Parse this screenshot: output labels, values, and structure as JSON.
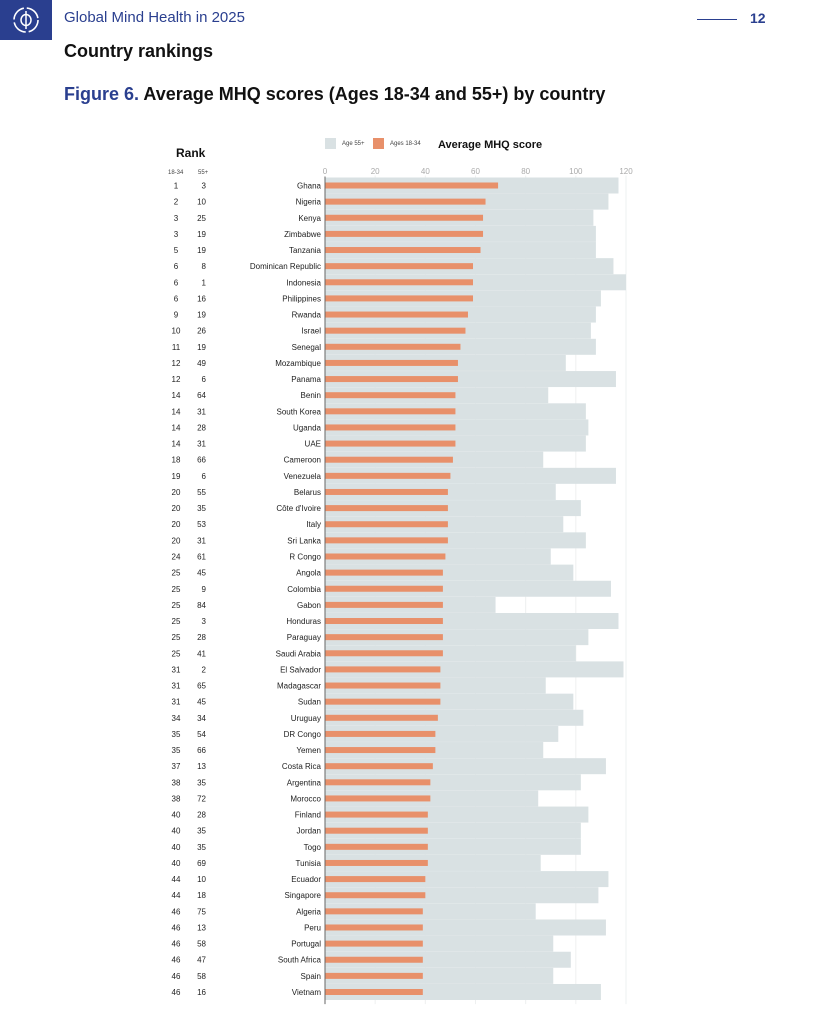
{
  "header": {
    "logo_icon": "phi-logo-icon",
    "doc_title": "Global Mind Health in 2025",
    "page_number": "12"
  },
  "section_title": "Country rankings",
  "figure": {
    "label": "Figure 6.",
    "title": "Average MHQ scores (Ages 18-34 and 55+) by country"
  },
  "rank_table": {
    "heading": "Rank",
    "col1": "18-34",
    "col2": "55+"
  },
  "colors": {
    "brand": "#2a3f8f",
    "age_18_34": "#e8906a",
    "age_55_plus": "#d9e1e3"
  },
  "chart_data": {
    "type": "bar",
    "orientation": "horizontal",
    "title": "Average MHQ score",
    "xlim": [
      0,
      120
    ],
    "xticks": [
      0,
      20,
      40,
      60,
      80,
      100,
      120
    ],
    "legend": [
      "Age 55+",
      "Ages 18-34"
    ],
    "legend_position": "top",
    "grid": true,
    "categories": [
      "Ghana",
      "Nigeria",
      "Kenya",
      "Zimbabwe",
      "Tanzania",
      "Dominican Republic",
      "Indonesia",
      "Philippines",
      "Rwanda",
      "Israel",
      "Senegal",
      "Mozambique",
      "Panama",
      "Benin",
      "South Korea",
      "Uganda",
      "UAE",
      "Cameroon",
      "Venezuela",
      "Belarus",
      "Côte d'Ivoire",
      "Italy",
      "Sri Lanka",
      "R Congo",
      "Angola",
      "Colombia",
      "Gabon",
      "Honduras",
      "Paraguay",
      "Saudi Arabia",
      "El Salvador",
      "Madagascar",
      "Sudan",
      "Uruguay",
      "DR Congo",
      "Yemen",
      "Costa Rica",
      "Argentina",
      "Morocco",
      "Finland",
      "Jordan",
      "Togo",
      "Tunisia",
      "Ecuador",
      "Singapore",
      "Algeria",
      "Peru",
      "Portugal",
      "South Africa",
      "Spain",
      "Vietnam"
    ],
    "series": [
      {
        "name": "Age 55+",
        "values": [
          117,
          113,
          107,
          108,
          108,
          115,
          120,
          110,
          108,
          106,
          108,
          96,
          116,
          89,
          104,
          105,
          104,
          87,
          116,
          92,
          102,
          95,
          104,
          90,
          99,
          114,
          68,
          117,
          105,
          100,
          119,
          88,
          99,
          103,
          93,
          87,
          112,
          102,
          85,
          105,
          102,
          102,
          86,
          113,
          109,
          84,
          112,
          91,
          98,
          91,
          110
        ]
      },
      {
        "name": "Ages 18-34",
        "values": [
          69,
          64,
          63,
          63,
          62,
          59,
          59,
          59,
          57,
          56,
          54,
          53,
          53,
          52,
          52,
          52,
          52,
          51,
          50,
          49,
          49,
          49,
          49,
          48,
          47,
          47,
          47,
          47,
          47,
          47,
          46,
          46,
          46,
          45,
          44,
          44,
          43,
          42,
          42,
          41,
          41,
          41,
          41,
          40,
          40,
          39,
          39,
          39,
          39,
          39,
          39
        ]
      }
    ],
    "rank_18_34": [
      1,
      2,
      3,
      3,
      5,
      6,
      6,
      6,
      9,
      10,
      11,
      12,
      12,
      14,
      14,
      14,
      14,
      18,
      19,
      20,
      20,
      20,
      20,
      24,
      25,
      25,
      25,
      25,
      25,
      25,
      31,
      31,
      31,
      34,
      35,
      35,
      37,
      38,
      38,
      40,
      40,
      40,
      40,
      44,
      44,
      46,
      46,
      46,
      46,
      46,
      46
    ],
    "rank_55_plus": [
      3,
      10,
      25,
      19,
      19,
      8,
      1,
      16,
      19,
      26,
      19,
      49,
      6,
      64,
      31,
      28,
      31,
      66,
      6,
      55,
      35,
      53,
      31,
      61,
      45,
      9,
      84,
      3,
      28,
      41,
      2,
      65,
      45,
      34,
      54,
      66,
      13,
      35,
      72,
      28,
      35,
      35,
      69,
      10,
      18,
      75,
      13,
      58,
      47,
      58,
      16
    ]
  }
}
